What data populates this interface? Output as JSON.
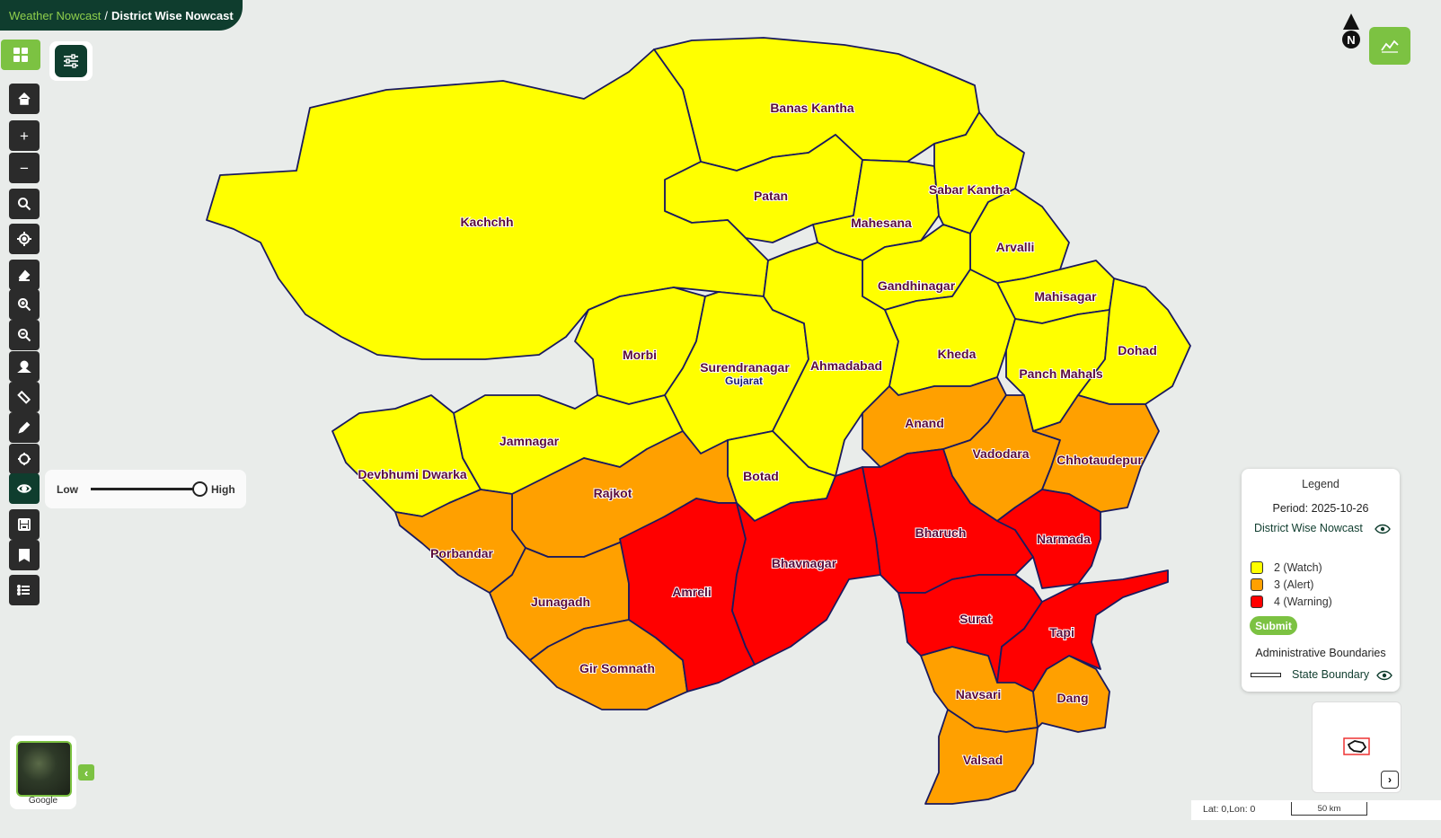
{
  "breadcrumb": {
    "root": "Weather Nowcast",
    "separator": "/",
    "current": "District Wise Nowcast"
  },
  "icons": {
    "layers": "grid-icon",
    "filter": "sliders-icon",
    "home": "home-icon",
    "zoom_in": "plus-icon",
    "zoom_out": "minus-icon",
    "search": "search-icon",
    "locate": "crosshair-icon",
    "erase": "eraser-icon",
    "zoom_box_in": "zoom-in-icon",
    "zoom_box_out": "zoom-out-icon",
    "pin": "location-pin-icon",
    "measure": "ruler-icon",
    "draw": "pencil-icon",
    "point": "target-icon",
    "visibility": "eye-icon",
    "save": "save-icon",
    "bookmark": "bookmark-icon",
    "list": "list-icon",
    "compass": "north-arrow-icon",
    "chart": "chart-icon"
  },
  "toolbar": {
    "zoom_in_label": "+",
    "zoom_out_label": "−"
  },
  "opacity_slider": {
    "low_label": "Low",
    "high_label": "High",
    "value_percent": 100
  },
  "compass": {
    "label": "N"
  },
  "legend": {
    "title": "Legend",
    "period": "Period: 2025-10-26",
    "layer_name": "District Wise Nowcast",
    "items": [
      {
        "label": "2 (Watch)",
        "color": "#ffff00"
      },
      {
        "label": "3 (Alert)",
        "color": "#ffa000"
      },
      {
        "label": "4 (Warning)",
        "color": "#ff0000"
      }
    ],
    "submit_label": "Submit",
    "admin_title": "Administrative Boundaries",
    "boundary_label": "State Boundary"
  },
  "overview": {
    "nav_label": "›"
  },
  "status": {
    "coords": "Lat: 0,Lon: 0",
    "scale": "50 km"
  },
  "basemap": {
    "label": "Google",
    "collapse_label": "‹"
  },
  "map": {
    "state_label": "Gujarat",
    "colors": {
      "watch": "#ffff00",
      "alert": "#ffa000",
      "warning": "#ff0000",
      "boundary": "#1a1a5e"
    },
    "districts": [
      {
        "name": "Banas Kantha",
        "level": 2
      },
      {
        "name": "Patan",
        "level": 2
      },
      {
        "name": "Mahesana",
        "level": 2
      },
      {
        "name": "Sabar Kantha",
        "level": 2
      },
      {
        "name": "Arvalli",
        "level": 2
      },
      {
        "name": "Gandhinagar",
        "level": 2
      },
      {
        "name": "Mahisagar",
        "level": 2
      },
      {
        "name": "Kachchh",
        "level": 2
      },
      {
        "name": "Morbi",
        "level": 2
      },
      {
        "name": "Surendranagar",
        "level": 2
      },
      {
        "name": "Ahmadabad",
        "level": 2
      },
      {
        "name": "Kheda",
        "level": 2
      },
      {
        "name": "Panch Mahals",
        "level": 2
      },
      {
        "name": "Dohad",
        "level": 2
      },
      {
        "name": "Jamnagar",
        "level": 2
      },
      {
        "name": "Devbhumi Dwarka",
        "level": 2
      },
      {
        "name": "Botad",
        "level": 2
      },
      {
        "name": "Anand",
        "level": 3
      },
      {
        "name": "Vadodara",
        "level": 3
      },
      {
        "name": "Chhotaudepur",
        "level": 3
      },
      {
        "name": "Rajkot",
        "level": 3
      },
      {
        "name": "Porbandar",
        "level": 3
      },
      {
        "name": "Junagadh",
        "level": 3
      },
      {
        "name": "Gir Somnath",
        "level": 3
      },
      {
        "name": "Navsari",
        "level": 3
      },
      {
        "name": "Dang",
        "level": 3
      },
      {
        "name": "Valsad",
        "level": 3
      },
      {
        "name": "Bharuch",
        "level": 4
      },
      {
        "name": "Narmada",
        "level": 4
      },
      {
        "name": "Amreli",
        "level": 4
      },
      {
        "name": "Bhavnagar",
        "level": 4
      },
      {
        "name": "Surat",
        "level": 4
      },
      {
        "name": "Tapi",
        "level": 4
      }
    ]
  }
}
